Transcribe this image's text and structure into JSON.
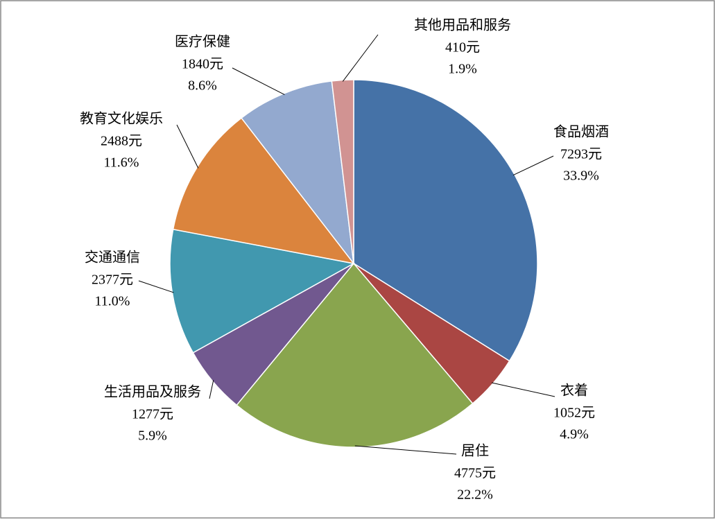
{
  "chart_data": {
    "type": "pie",
    "categories": [
      "食品烟酒",
      "衣着",
      "居住",
      "生活用品及服务",
      "交通通信",
      "教育文化娱乐",
      "医疗保健",
      "其他用品和服务"
    ],
    "values": [
      7293,
      1052,
      4775,
      1277,
      2377,
      2488,
      1840,
      410
    ],
    "value_labels": [
      "7293元",
      "1052元",
      "4775元",
      "1277元",
      "2377元",
      "2488元",
      "1840元",
      "410元"
    ],
    "percents": [
      33.9,
      4.9,
      22.2,
      5.9,
      11.0,
      11.6,
      8.6,
      1.9
    ],
    "percent_labels": [
      "33.9%",
      "4.9%",
      "22.2%",
      "5.9%",
      "11.0%",
      "11.6%",
      "8.6%",
      "1.9%"
    ],
    "colors": [
      "#4572a7",
      "#aa4643",
      "#89a54e",
      "#71588f",
      "#4198af",
      "#db843d",
      "#93a9cf",
      "#d19392"
    ]
  }
}
